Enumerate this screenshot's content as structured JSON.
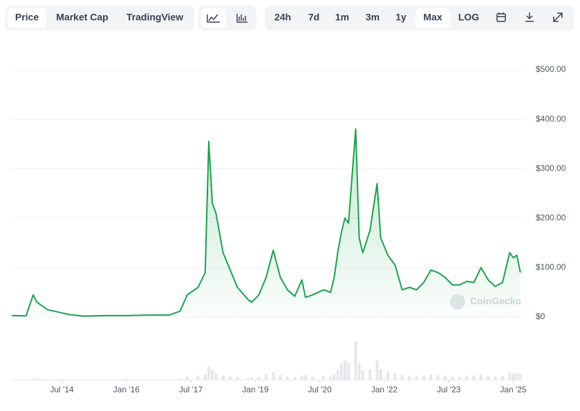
{
  "toolbar": {
    "views": [
      "Price",
      "Market Cap",
      "TradingView"
    ],
    "active_view": "Price",
    "ranges": [
      "24h",
      "7d",
      "1m",
      "3m",
      "1y",
      "Max",
      "LOG"
    ],
    "active_range": "Max"
  },
  "watermark": "CoinGecko",
  "chart_data": {
    "type": "line",
    "x": [
      "2013-05",
      "2013-09",
      "2013-11",
      "2013-12",
      "2014-01",
      "2014-03",
      "2014-06",
      "2014-09",
      "2015-01",
      "2015-07",
      "2016-01",
      "2016-07",
      "2017-01",
      "2017-04",
      "2017-06",
      "2017-09",
      "2017-11",
      "2017-12",
      "2018-01",
      "2018-02",
      "2018-04",
      "2018-06",
      "2018-08",
      "2018-11",
      "2018-12",
      "2019-02",
      "2019-04",
      "2019-06",
      "2019-08",
      "2019-10",
      "2019-12",
      "2020-02",
      "2020-03",
      "2020-05",
      "2020-08",
      "2020-10",
      "2020-11",
      "2020-12",
      "2021-01",
      "2021-02",
      "2021-03",
      "2021-05",
      "2021-06",
      "2021-07",
      "2021-09",
      "2021-11",
      "2021-12",
      "2022-02",
      "2022-04",
      "2022-06",
      "2022-08",
      "2022-10",
      "2022-12",
      "2023-02",
      "2023-04",
      "2023-06",
      "2023-08",
      "2023-10",
      "2023-12",
      "2024-02",
      "2024-04",
      "2024-06",
      "2024-08",
      "2024-10",
      "2024-12",
      "2025-01",
      "2025-02",
      "2025-03"
    ],
    "series": [
      {
        "name": "Price",
        "color": "#16a34a",
        "values": [
          3,
          2.5,
          45,
          30,
          25,
          15,
          10,
          5,
          2,
          3,
          3,
          4,
          4,
          12,
          45,
          60,
          90,
          355,
          230,
          210,
          130,
          95,
          60,
          35,
          30,
          45,
          80,
          135,
          80,
          55,
          42,
          75,
          40,
          45,
          55,
          50,
          80,
          130,
          170,
          200,
          190,
          380,
          160,
          130,
          175,
          270,
          160,
          125,
          105,
          55,
          60,
          55,
          70,
          95,
          90,
          80,
          65,
          65,
          72,
          70,
          100,
          75,
          62,
          70,
          130,
          120,
          125,
          90
        ]
      },
      {
        "name": "Volume",
        "color": "#e5e7eb",
        "axis": "y2",
        "values": [
          1,
          1,
          3,
          2,
          2,
          1,
          1,
          1,
          1,
          1,
          1,
          1,
          1,
          2,
          6,
          8,
          10,
          25,
          18,
          12,
          8,
          6,
          5,
          4,
          4,
          5,
          10,
          14,
          9,
          6,
          5,
          8,
          9,
          6,
          7,
          6,
          10,
          18,
          30,
          35,
          30,
          70,
          30,
          18,
          20,
          35,
          20,
          14,
          12,
          9,
          8,
          7,
          8,
          10,
          9,
          8,
          6,
          6,
          8,
          8,
          10,
          7,
          6,
          7,
          14,
          12,
          12,
          10
        ]
      }
    ],
    "xlim": [
      "2013-05",
      "2025-04"
    ],
    "xticks": [
      {
        "value": "2014-07",
        "label": "Jul '14"
      },
      {
        "value": "2016-01",
        "label": "Jan '16"
      },
      {
        "value": "2017-07",
        "label": "Jul '17"
      },
      {
        "value": "2019-01",
        "label": "Jan '19"
      },
      {
        "value": "2020-07",
        "label": "Jul '20"
      },
      {
        "value": "2022-01",
        "label": "Jan '22"
      },
      {
        "value": "2023-07",
        "label": "Jul '23"
      },
      {
        "value": "2025-01",
        "label": "Jan '25"
      }
    ],
    "ylim": [
      0,
      500
    ],
    "yticks": [
      {
        "value": 0,
        "label": "$0"
      },
      {
        "value": 100,
        "label": "$100.00"
      },
      {
        "value": 200,
        "label": "$200.00"
      },
      {
        "value": 300,
        "label": "$300.00"
      },
      {
        "value": 400,
        "label": "$400.00"
      },
      {
        "value": 500,
        "label": "$500.00"
      }
    ],
    "y2lim": [
      0,
      100
    ],
    "grid": true
  }
}
